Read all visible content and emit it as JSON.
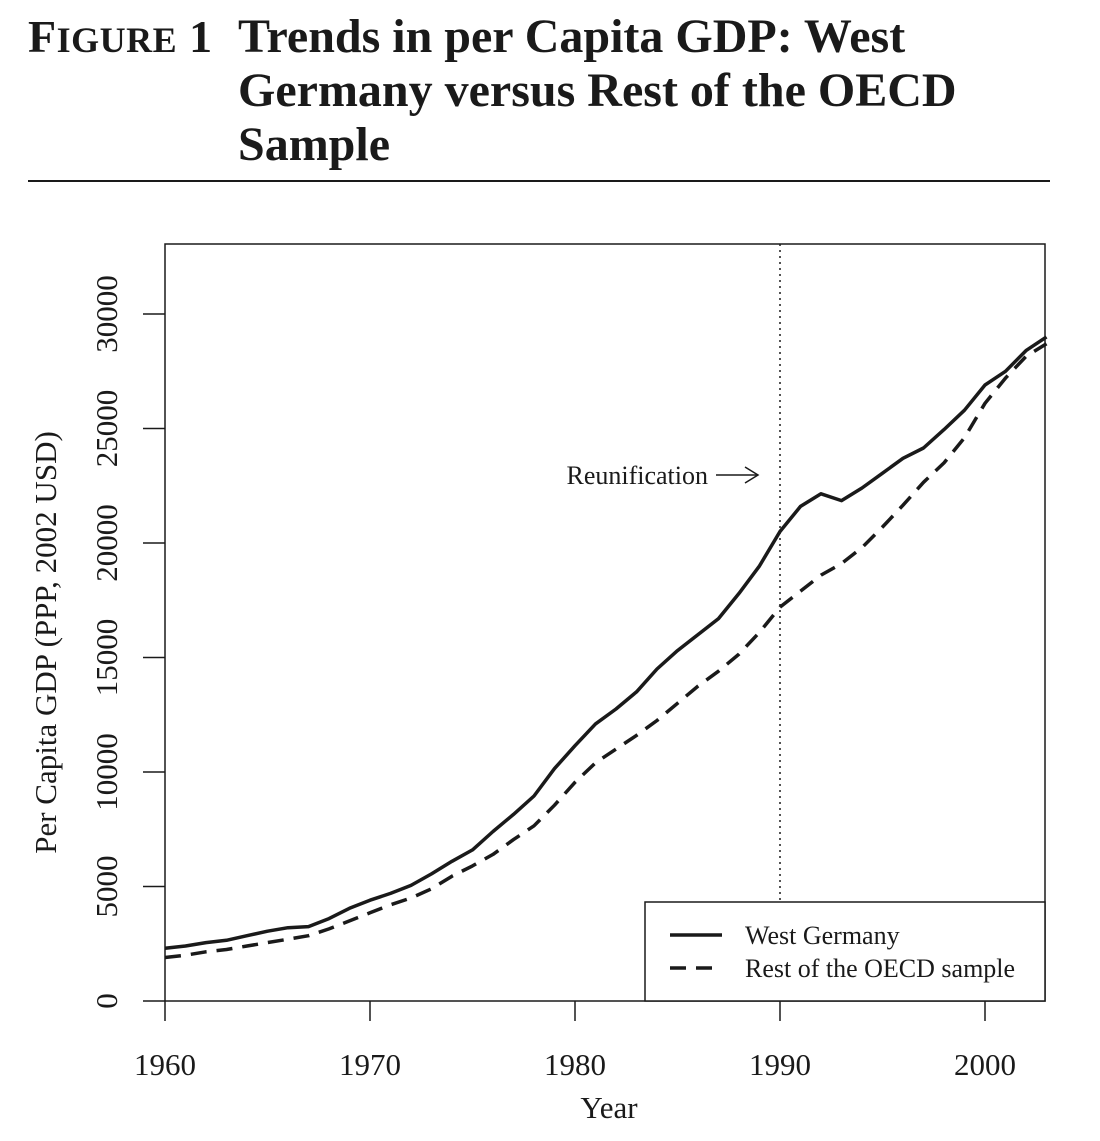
{
  "figure": {
    "label_first": "F",
    "label_rest": "IGURE",
    "label_num": "1",
    "title": "Trends in per Capita GDP: West Germany versus Rest of the OECD Sample"
  },
  "chart_data": {
    "type": "line",
    "title": "Trends in per Capita GDP: West Germany versus Rest of the OECD Sample",
    "xlabel": "Year",
    "ylabel": "Per Capita GDP (PPP, 2002 USD)",
    "xlim": [
      1960,
      2003
    ],
    "ylim": [
      0,
      33000
    ],
    "xticks": [
      1960,
      1970,
      1980,
      1990,
      2000
    ],
    "yticks": [
      0,
      5000,
      10000,
      15000,
      20000,
      25000,
      30000
    ],
    "grid": false,
    "legend_position": "bottom-right",
    "annotation": {
      "text": "Reunification",
      "x": 1990,
      "line_style": "dotted"
    },
    "x": [
      1960,
      1961,
      1962,
      1963,
      1964,
      1965,
      1966,
      1967,
      1968,
      1969,
      1970,
      1971,
      1972,
      1973,
      1974,
      1975,
      1976,
      1977,
      1978,
      1979,
      1980,
      1981,
      1982,
      1983,
      1984,
      1985,
      1986,
      1987,
      1988,
      1989,
      1990,
      1991,
      1992,
      1993,
      1994,
      1995,
      1996,
      1997,
      1998,
      1999,
      2000,
      2001,
      2002,
      2003
    ],
    "series": [
      {
        "name": "West Germany",
        "style": "solid",
        "color": "#1a1a1a",
        "values": [
          2300,
          2400,
          2550,
          2650,
          2850,
          3050,
          3200,
          3250,
          3600,
          4050,
          4400,
          4700,
          5050,
          5550,
          6100,
          6600,
          7400,
          8150,
          8950,
          10150,
          11150,
          12100,
          12750,
          13500,
          14500,
          15300,
          16000,
          16700,
          17800,
          19000,
          20500,
          21600,
          22150,
          21850,
          22400,
          23050,
          23700,
          24150,
          24950,
          25800,
          26900,
          27500,
          28400,
          29000
        ]
      },
      {
        "name": "Rest of the OECD sample",
        "style": "dashed",
        "color": "#1a1a1a",
        "values": [
          1900,
          2000,
          2150,
          2250,
          2400,
          2550,
          2700,
          2850,
          3150,
          3500,
          3850,
          4200,
          4500,
          4900,
          5450,
          5900,
          6400,
          7050,
          7650,
          8550,
          9550,
          10400,
          11000,
          11600,
          12250,
          13000,
          13750,
          14400,
          15150,
          16100,
          17200,
          17900,
          18600,
          19100,
          19800,
          20700,
          21650,
          22650,
          23500,
          24600,
          26100,
          27200,
          28150,
          28700
        ]
      }
    ]
  }
}
